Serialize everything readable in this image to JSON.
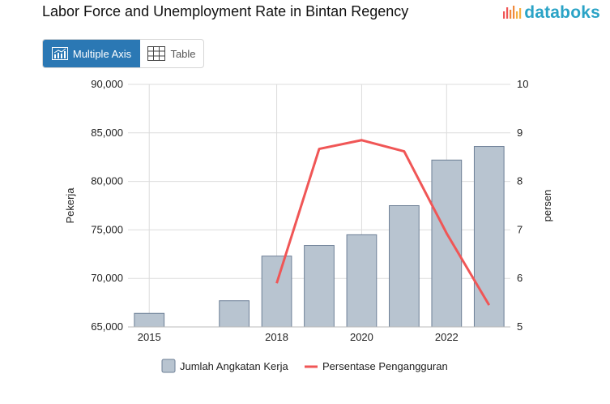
{
  "title": "Labor Force and Unemployment Rate in Bintan Regency",
  "brand": {
    "name": "databoks",
    "accent": "#2aa3c6"
  },
  "view_toggle": {
    "multiple_axis_label": "Multiple Axis",
    "table_label": "Table",
    "active": "multiple_axis",
    "active_color": "#2b78b4"
  },
  "chart_data": {
    "type": "bar",
    "categories": [
      "2015",
      "2016",
      "2017",
      "2018",
      "2019",
      "2020",
      "2021",
      "2022",
      "2023"
    ],
    "x_tick_labels": [
      "2015",
      "",
      "",
      "2018",
      "",
      "2020",
      "",
      "2022",
      ""
    ],
    "series": [
      {
        "name": "Jumlah Angkatan Kerja",
        "type": "bar",
        "axis": "left",
        "color": "#b8c4d0",
        "border": "#6d7f96",
        "values": [
          66400,
          null,
          67700,
          72300,
          73400,
          74500,
          77500,
          82200,
          83600
        ]
      },
      {
        "name": "Persentase Pengangguran",
        "type": "line",
        "axis": "right",
        "color": "#f05656",
        "values": [
          null,
          null,
          null,
          5.9,
          8.67,
          8.85,
          8.62,
          6.93,
          5.45
        ]
      }
    ],
    "y_left": {
      "label": "Pekerja",
      "min": 65000,
      "max": 90000,
      "ticks": [
        "65,000",
        "70,000",
        "75,000",
        "80,000",
        "85,000",
        "90,000"
      ]
    },
    "y_right": {
      "label": "persen",
      "min": 5,
      "max": 10,
      "ticks": [
        "5",
        "6",
        "7",
        "8",
        "9",
        "10"
      ]
    },
    "legend_position": "bottom",
    "grid": true
  }
}
